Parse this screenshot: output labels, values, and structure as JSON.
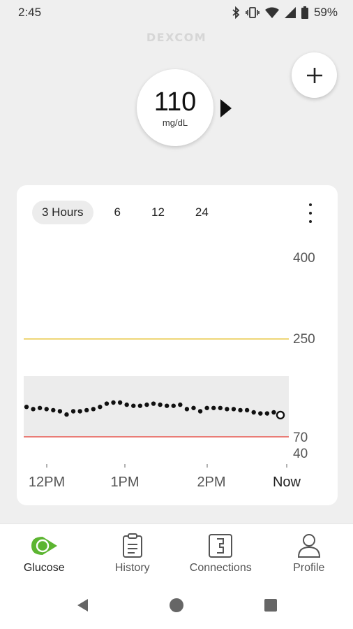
{
  "status_bar": {
    "time": "2:45",
    "battery": "59%"
  },
  "brand": "DEXCOM",
  "glucose": {
    "value": "110",
    "unit": "mg/dL",
    "trend": "steady"
  },
  "chart_tabs": [
    {
      "label": "3 Hours",
      "active": true
    },
    {
      "label": "6",
      "active": false
    },
    {
      "label": "12",
      "active": false
    },
    {
      "label": "24",
      "active": false
    }
  ],
  "chart_data": {
    "type": "scatter",
    "y_ticks": [
      "400",
      "250",
      "70",
      "40"
    ],
    "x_ticks": [
      "12PM",
      "1PM",
      "2PM",
      "Now"
    ],
    "target_range": [
      70,
      180
    ],
    "high_line": 250,
    "low_line": 70,
    "colors": {
      "high": "#e8c94a",
      "low": "#e8574f",
      "range": "#ececec",
      "points": "#111111"
    },
    "readings": [
      {
        "t": 0,
        "mg_dl": 125
      },
      {
        "t": 1,
        "mg_dl": 121
      },
      {
        "t": 2,
        "mg_dl": 123
      },
      {
        "t": 3,
        "mg_dl": 121
      },
      {
        "t": 4,
        "mg_dl": 119
      },
      {
        "t": 5,
        "mg_dl": 117
      },
      {
        "t": 6,
        "mg_dl": 111
      },
      {
        "t": 7,
        "mg_dl": 117
      },
      {
        "t": 8,
        "mg_dl": 117
      },
      {
        "t": 9,
        "mg_dl": 119
      },
      {
        "t": 10,
        "mg_dl": 121
      },
      {
        "t": 11,
        "mg_dl": 125
      },
      {
        "t": 12,
        "mg_dl": 131
      },
      {
        "t": 13,
        "mg_dl": 133
      },
      {
        "t": 14,
        "mg_dl": 133
      },
      {
        "t": 15,
        "mg_dl": 129
      },
      {
        "t": 16,
        "mg_dl": 127
      },
      {
        "t": 17,
        "mg_dl": 127
      },
      {
        "t": 18,
        "mg_dl": 129
      },
      {
        "t": 19,
        "mg_dl": 131
      },
      {
        "t": 20,
        "mg_dl": 129
      },
      {
        "t": 21,
        "mg_dl": 127
      },
      {
        "t": 22,
        "mg_dl": 127
      },
      {
        "t": 23,
        "mg_dl": 129
      },
      {
        "t": 24,
        "mg_dl": 121
      },
      {
        "t": 25,
        "mg_dl": 123
      },
      {
        "t": 26,
        "mg_dl": 117
      },
      {
        "t": 27,
        "mg_dl": 123
      },
      {
        "t": 28,
        "mg_dl": 123
      },
      {
        "t": 29,
        "mg_dl": 123
      },
      {
        "t": 30,
        "mg_dl": 121
      },
      {
        "t": 31,
        "mg_dl": 121
      },
      {
        "t": 32,
        "mg_dl": 119
      },
      {
        "t": 33,
        "mg_dl": 119
      },
      {
        "t": 34,
        "mg_dl": 115
      },
      {
        "t": 35,
        "mg_dl": 113
      },
      {
        "t": 36,
        "mg_dl": 113
      },
      {
        "t": 37,
        "mg_dl": 115
      },
      {
        "t": 38,
        "mg_dl": 110
      }
    ]
  },
  "bottom_nav": [
    {
      "label": "Glucose",
      "icon": "glucose-icon",
      "active": true
    },
    {
      "label": "History",
      "icon": "history-icon",
      "active": false
    },
    {
      "label": "Connections",
      "icon": "connections-icon",
      "active": false
    },
    {
      "label": "Profile",
      "icon": "profile-icon",
      "active": false
    }
  ],
  "system_nav": [
    "back-icon",
    "home-icon",
    "recents-icon"
  ]
}
